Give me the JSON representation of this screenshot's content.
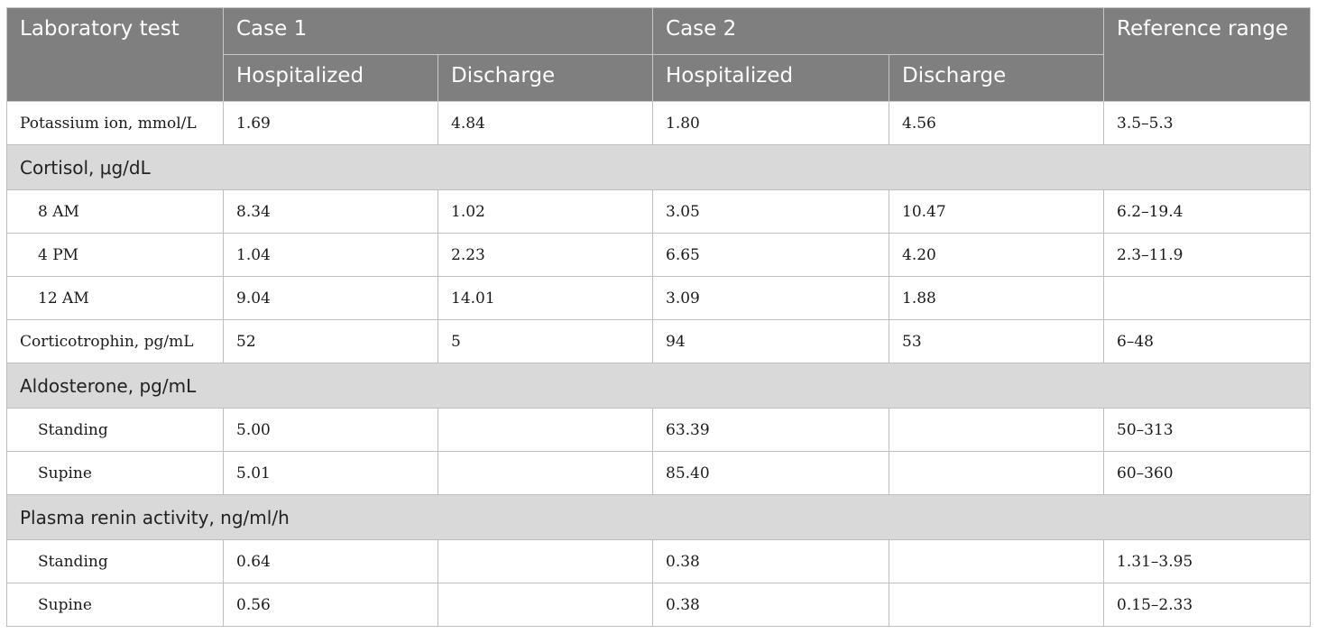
{
  "header": {
    "col_test": "Laboratory test",
    "case1": "Case 1",
    "case2": "Case 2",
    "col_ref": "Reference range",
    "sub": [
      "Hospitalized",
      "Discharge",
      "Hospitalized",
      "Discharge"
    ]
  },
  "rows": [
    {
      "type": "data",
      "label": "Potassium ion, mmol/L",
      "indent": false,
      "values": [
        "1.69",
        "4.84",
        "1.80",
        "4.56",
        "3.5–5.3"
      ]
    },
    {
      "type": "section",
      "label": "Cortisol, μg/dL"
    },
    {
      "type": "data",
      "label": "8 AM",
      "indent": true,
      "values": [
        "8.34",
        "1.02",
        "3.05",
        "10.47",
        "6.2–19.4"
      ]
    },
    {
      "type": "data",
      "label": "4 PM",
      "indent": true,
      "values": [
        "1.04",
        "2.23",
        "6.65",
        "4.20",
        "2.3–11.9"
      ]
    },
    {
      "type": "data",
      "label": "12 AM",
      "indent": true,
      "values": [
        "9.04",
        "14.01",
        "3.09",
        "1.88",
        ""
      ]
    },
    {
      "type": "data",
      "label": "Corticotrophin, pg/mL",
      "indent": false,
      "values": [
        "52",
        "5",
        "94",
        "53",
        "6–48"
      ]
    },
    {
      "type": "section",
      "label": "Aldosterone, pg/mL"
    },
    {
      "type": "data",
      "label": "Standing",
      "indent": true,
      "values": [
        "5.00",
        "",
        "63.39",
        "",
        "50–313"
      ]
    },
    {
      "type": "data",
      "label": "Supine",
      "indent": true,
      "values": [
        "5.01",
        "",
        "85.40",
        "",
        "60–360"
      ]
    },
    {
      "type": "section",
      "label": "Plasma renin activity, ng/ml/h"
    },
    {
      "type": "data",
      "label": "Standing",
      "indent": true,
      "values": [
        "0.64",
        "",
        "0.38",
        "",
        "1.31–3.95"
      ]
    },
    {
      "type": "data",
      "label": "Supine",
      "indent": true,
      "values": [
        "0.56",
        "",
        "0.38",
        "",
        "0.15–2.33"
      ]
    }
  ]
}
